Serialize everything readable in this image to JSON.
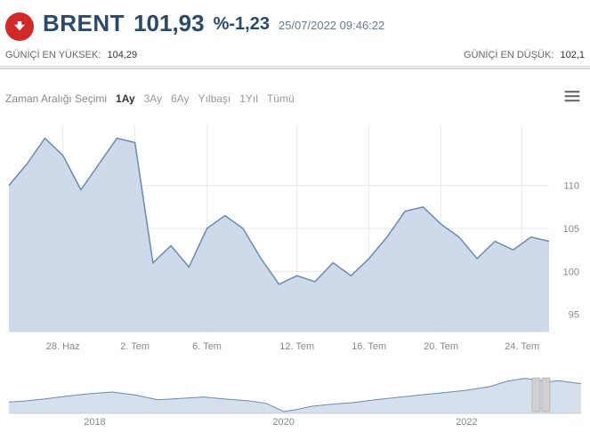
{
  "header": {
    "ticker": "BRENT",
    "price": "101,93",
    "change": "%-1,23",
    "timestamp": "25/07/2022 09:46:22",
    "direction": "down",
    "badge_color": "#d32828",
    "text_color": "#2a4a6a"
  },
  "stats": {
    "high_label": "GÜNİÇİ EN YÜKSEK:",
    "high_value": "104,29",
    "low_label": "GÜNİÇİ EN DÜŞÜK:",
    "low_value": "102,1"
  },
  "range_selector": {
    "label": "Zaman Aralığı Seçimi",
    "options": [
      "1Ay",
      "3Ay",
      "6Ay",
      "Yılbaşı",
      "1Yıl",
      "Tümü"
    ],
    "active": "1Ay"
  },
  "main_chart": {
    "type": "area",
    "line_color": "#6a8bb0",
    "fill_color": "#c5d4e5",
    "fill_opacity": 0.85,
    "grid_color": "#e8e8e8",
    "border_color": "#d0d0d0",
    "background": "#ffffff",
    "line_width": 1.5,
    "ylim": [
      93,
      117
    ],
    "yticks": [
      95,
      100,
      105,
      110
    ],
    "xlim": [
      0,
      30
    ],
    "xticks": [
      {
        "pos": 3,
        "label": "28. Haz"
      },
      {
        "pos": 7,
        "label": "2. Tem"
      },
      {
        "pos": 11,
        "label": "6. Tem"
      },
      {
        "pos": 16,
        "label": "12. Tem"
      },
      {
        "pos": 20,
        "label": "16. Tem"
      },
      {
        "pos": 24,
        "label": "20. Tem"
      },
      {
        "pos": 28.5,
        "label": "24. Tem"
      }
    ],
    "data": [
      {
        "x": 0,
        "y": 110
      },
      {
        "x": 1,
        "y": 112.5
      },
      {
        "x": 2,
        "y": 115.5
      },
      {
        "x": 3,
        "y": 113.5
      },
      {
        "x": 4,
        "y": 109.5
      },
      {
        "x": 5,
        "y": 112.5
      },
      {
        "x": 6,
        "y": 115.5
      },
      {
        "x": 7,
        "y": 115
      },
      {
        "x": 8,
        "y": 101
      },
      {
        "x": 9,
        "y": 103
      },
      {
        "x": 10,
        "y": 100.5
      },
      {
        "x": 11,
        "y": 105
      },
      {
        "x": 12,
        "y": 106.5
      },
      {
        "x": 13,
        "y": 105
      },
      {
        "x": 14,
        "y": 101.5
      },
      {
        "x": 15,
        "y": 98.5
      },
      {
        "x": 16,
        "y": 99.5
      },
      {
        "x": 17,
        "y": 98.8
      },
      {
        "x": 18,
        "y": 101
      },
      {
        "x": 19,
        "y": 99.5
      },
      {
        "x": 20,
        "y": 101.5
      },
      {
        "x": 21,
        "y": 104
      },
      {
        "x": 22,
        "y": 107
      },
      {
        "x": 23,
        "y": 107.5
      },
      {
        "x": 24,
        "y": 105.5
      },
      {
        "x": 25,
        "y": 104
      },
      {
        "x": 26,
        "y": 101.5
      },
      {
        "x": 27,
        "y": 103.5
      },
      {
        "x": 28,
        "y": 102.5
      },
      {
        "x": 29,
        "y": 104
      },
      {
        "x": 30,
        "y": 103.5
      }
    ]
  },
  "mini_chart": {
    "type": "area",
    "line_color": "#6a8bb0",
    "fill_color": "#d5e0ec",
    "grid_color": "#e8e8e8",
    "ylim": [
      20,
      125
    ],
    "xlim": [
      0,
      100
    ],
    "xticks": [
      {
        "pos": 15,
        "label": "2018"
      },
      {
        "pos": 48,
        "label": "2020"
      },
      {
        "pos": 80,
        "label": "2022"
      }
    ],
    "handle_pos": 93,
    "data": [
      {
        "x": 0,
        "y": 52
      },
      {
        "x": 3,
        "y": 55
      },
      {
        "x": 6,
        "y": 60
      },
      {
        "x": 10,
        "y": 68
      },
      {
        "x": 14,
        "y": 75
      },
      {
        "x": 18,
        "y": 80
      },
      {
        "x": 22,
        "y": 72
      },
      {
        "x": 26,
        "y": 58
      },
      {
        "x": 30,
        "y": 62
      },
      {
        "x": 34,
        "y": 66
      },
      {
        "x": 38,
        "y": 60
      },
      {
        "x": 42,
        "y": 55
      },
      {
        "x": 45,
        "y": 48
      },
      {
        "x": 48,
        "y": 25
      },
      {
        "x": 50,
        "y": 30
      },
      {
        "x": 53,
        "y": 40
      },
      {
        "x": 56,
        "y": 45
      },
      {
        "x": 60,
        "y": 50
      },
      {
        "x": 64,
        "y": 58
      },
      {
        "x": 68,
        "y": 65
      },
      {
        "x": 72,
        "y": 72
      },
      {
        "x": 76,
        "y": 78
      },
      {
        "x": 80,
        "y": 85
      },
      {
        "x": 84,
        "y": 95
      },
      {
        "x": 87,
        "y": 110
      },
      {
        "x": 90,
        "y": 118
      },
      {
        "x": 92,
        "y": 115
      },
      {
        "x": 94,
        "y": 108
      },
      {
        "x": 96,
        "y": 112
      },
      {
        "x": 100,
        "y": 103
      }
    ]
  }
}
